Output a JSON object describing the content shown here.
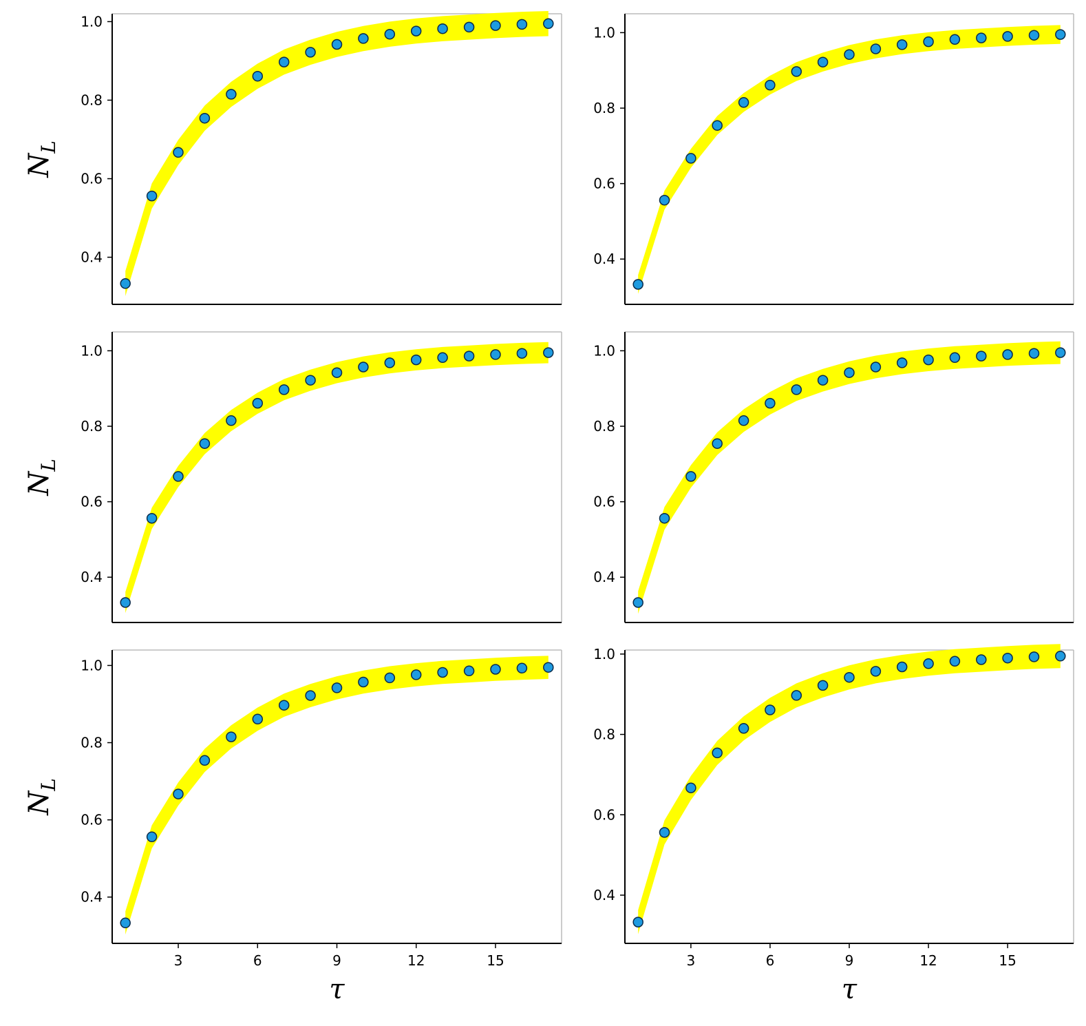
{
  "chart_data": [
    {
      "type": "scatter",
      "panel": "top-left",
      "ylabel": "N",
      "ylabel_subscript": "L",
      "xlabel": "",
      "xlim": [
        0.5,
        17.5
      ],
      "ylim": [
        0.28,
        1.02
      ],
      "yticks": [
        "0.4",
        "0.6",
        "0.8",
        "1.0"
      ],
      "xticks": [],
      "x": [
        1,
        2,
        3,
        4,
        5,
        6,
        7,
        8,
        9,
        10,
        11,
        12,
        13,
        14,
        15,
        16,
        17
      ],
      "y": [
        0.333,
        0.556,
        0.667,
        0.754,
        0.815,
        0.861,
        0.897,
        0.922,
        0.942,
        0.957,
        0.968,
        0.976,
        0.982,
        0.986,
        0.99,
        0.993,
        0.995
      ],
      "band_half_width": 0.032,
      "band_color": "#ffff00",
      "marker_color": "#1e9be0"
    },
    {
      "type": "scatter",
      "panel": "top-right",
      "ylabel": "",
      "xlabel": "",
      "xlim": [
        0.5,
        17.5
      ],
      "ylim": [
        0.28,
        1.05
      ],
      "yticks": [
        "0.4",
        "0.6",
        "0.8",
        "1.0"
      ],
      "xticks": [],
      "x": [
        1,
        2,
        3,
        4,
        5,
        6,
        7,
        8,
        9,
        10,
        11,
        12,
        13,
        14,
        15,
        16,
        17
      ],
      "y": [
        0.333,
        0.556,
        0.667,
        0.754,
        0.815,
        0.861,
        0.897,
        0.922,
        0.942,
        0.957,
        0.968,
        0.976,
        0.982,
        0.986,
        0.99,
        0.993,
        0.995
      ],
      "band_half_width": 0.025,
      "band_color": "#ffff00",
      "marker_color": "#1e9be0"
    },
    {
      "type": "scatter",
      "panel": "middle-left",
      "ylabel": "N",
      "ylabel_subscript": "L",
      "xlabel": "",
      "xlim": [
        0.5,
        17.5
      ],
      "ylim": [
        0.28,
        1.05
      ],
      "yticks": [
        "0.4",
        "0.6",
        "0.8",
        "1.0"
      ],
      "xticks": [],
      "x": [
        1,
        2,
        3,
        4,
        5,
        6,
        7,
        8,
        9,
        10,
        11,
        12,
        13,
        14,
        15,
        16,
        17
      ],
      "y": [
        0.333,
        0.556,
        0.667,
        0.754,
        0.815,
        0.861,
        0.897,
        0.922,
        0.942,
        0.957,
        0.968,
        0.976,
        0.982,
        0.986,
        0.99,
        0.993,
        0.995
      ],
      "band_half_width": 0.028,
      "band_color": "#ffff00",
      "marker_color": "#1e9be0"
    },
    {
      "type": "scatter",
      "panel": "middle-right",
      "ylabel": "",
      "xlabel": "",
      "xlim": [
        0.5,
        17.5
      ],
      "ylim": [
        0.28,
        1.05
      ],
      "yticks": [
        "0.4",
        "0.6",
        "0.8",
        "1.0"
      ],
      "xticks": [],
      "x": [
        1,
        2,
        3,
        4,
        5,
        6,
        7,
        8,
        9,
        10,
        11,
        12,
        13,
        14,
        15,
        16,
        17
      ],
      "y": [
        0.333,
        0.556,
        0.667,
        0.754,
        0.815,
        0.861,
        0.897,
        0.922,
        0.942,
        0.957,
        0.968,
        0.976,
        0.982,
        0.986,
        0.99,
        0.993,
        0.995
      ],
      "band_half_width": 0.03,
      "band_color": "#ffff00",
      "marker_color": "#1e9be0"
    },
    {
      "type": "scatter",
      "panel": "bottom-left",
      "ylabel": "N",
      "ylabel_subscript": "L",
      "xlabel": "τ",
      "xlim": [
        0.5,
        17.5
      ],
      "ylim": [
        0.28,
        1.04
      ],
      "yticks": [
        "0.4",
        "0.6",
        "0.8",
        "1.0"
      ],
      "xticks": [
        "3",
        "6",
        "9",
        "12",
        "15"
      ],
      "x": [
        1,
        2,
        3,
        4,
        5,
        6,
        7,
        8,
        9,
        10,
        11,
        12,
        13,
        14,
        15,
        16,
        17
      ],
      "y": [
        0.333,
        0.556,
        0.667,
        0.754,
        0.815,
        0.861,
        0.897,
        0.922,
        0.942,
        0.957,
        0.968,
        0.976,
        0.982,
        0.986,
        0.99,
        0.993,
        0.995
      ],
      "band_half_width": 0.03,
      "band_color": "#ffff00",
      "marker_color": "#1e9be0"
    },
    {
      "type": "scatter",
      "panel": "bottom-right",
      "ylabel": "",
      "xlabel": "τ",
      "xlim": [
        0.5,
        17.5
      ],
      "ylim": [
        0.28,
        1.01
      ],
      "yticks": [
        "0.4",
        "0.6",
        "0.8",
        "1.0"
      ],
      "xticks": [
        "3",
        "6",
        "9",
        "12",
        "15"
      ],
      "x": [
        1,
        2,
        3,
        4,
        5,
        6,
        7,
        8,
        9,
        10,
        11,
        12,
        13,
        14,
        15,
        16,
        17
      ],
      "y": [
        0.333,
        0.556,
        0.667,
        0.754,
        0.815,
        0.861,
        0.897,
        0.922,
        0.942,
        0.957,
        0.968,
        0.976,
        0.982,
        0.986,
        0.99,
        0.993,
        0.995
      ],
      "band_half_width": 0.03,
      "band_color": "#ffff00",
      "marker_color": "#1e9be0"
    }
  ]
}
